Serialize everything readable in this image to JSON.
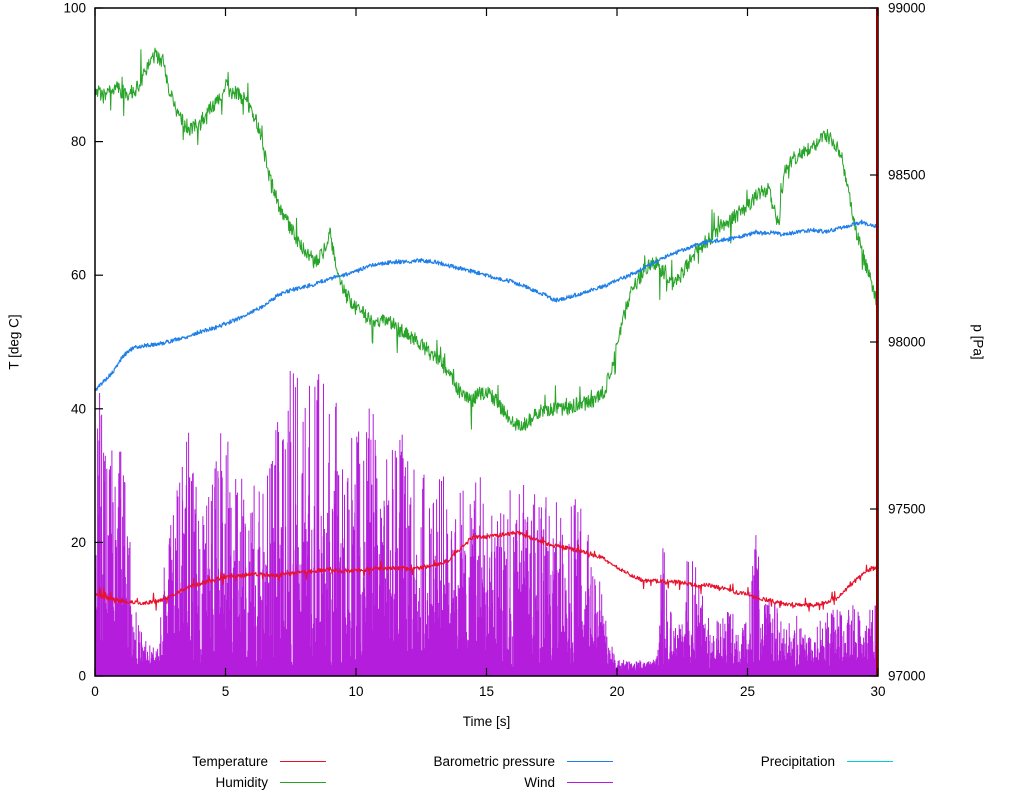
{
  "chart_data": {
    "type": "line",
    "title": "",
    "xlabel": "Time [s]",
    "ylabel_left": "T [deg C]",
    "ylabel_right": "p [Pa]",
    "x_range": [
      0,
      30
    ],
    "y_left_range": [
      0,
      100
    ],
    "y_right_range": [
      97000,
      99000
    ],
    "x_ticks": [
      0,
      5,
      10,
      15,
      20,
      25,
      30
    ],
    "y_ticks_left": [
      0,
      20,
      40,
      60,
      80,
      100
    ],
    "y_ticks_right": [
      97000,
      97500,
      98000,
      98500,
      99000
    ],
    "grid": false,
    "border_color": "#000000",
    "end_marker": {
      "x": 30,
      "color": "#8b0000"
    },
    "series": [
      {
        "id": "precipitation",
        "name": "Precipitation",
        "color": "#00d0d0",
        "axis": "left",
        "style": "line",
        "noise": 0,
        "seed": 11,
        "width": 1,
        "anchors": [
          [
            0,
            0
          ],
          [
            30,
            0
          ]
        ]
      },
      {
        "id": "wind",
        "name": "Wind",
        "color": "#b31ddb",
        "axis": "left",
        "style": "impulses",
        "seed": 7,
        "base": 2,
        "power": 2.2,
        "dt": 0.011,
        "anchors": [
          [
            0,
            32
          ],
          [
            0.2,
            48
          ],
          [
            0.5,
            30
          ],
          [
            0.8,
            40
          ],
          [
            1.2,
            30
          ],
          [
            1.5,
            12
          ],
          [
            2,
            6
          ],
          [
            2.4,
            5
          ],
          [
            2.7,
            20
          ],
          [
            3,
            28
          ],
          [
            3.5,
            38
          ],
          [
            4,
            30
          ],
          [
            4.5,
            30
          ],
          [
            5,
            44
          ],
          [
            5.5,
            32
          ],
          [
            6,
            30
          ],
          [
            6.5,
            34
          ],
          [
            7,
            40
          ],
          [
            7.5,
            48
          ],
          [
            8,
            44
          ],
          [
            8.5,
            46
          ],
          [
            9,
            48
          ],
          [
            9.3,
            40
          ],
          [
            9.7,
            36
          ],
          [
            10,
            38
          ],
          [
            10.5,
            42
          ],
          [
            11,
            36
          ],
          [
            11.5,
            38
          ],
          [
            12,
            36
          ],
          [
            12.5,
            34
          ],
          [
            13,
            30
          ],
          [
            13.5,
            32
          ],
          [
            14,
            30
          ],
          [
            14.5,
            34
          ],
          [
            15,
            28
          ],
          [
            15.5,
            26
          ],
          [
            16,
            34
          ],
          [
            16.5,
            30
          ],
          [
            17,
            28
          ],
          [
            17.5,
            30
          ],
          [
            18,
            26
          ],
          [
            18.5,
            28
          ],
          [
            19,
            24
          ],
          [
            19.3,
            20
          ],
          [
            19.6,
            10
          ],
          [
            20,
            2.5
          ],
          [
            20.5,
            2.5
          ],
          [
            21,
            2.5
          ],
          [
            21.5,
            3
          ],
          [
            21.8,
            26
          ],
          [
            22,
            12
          ],
          [
            22.3,
            8
          ],
          [
            22.6,
            16
          ],
          [
            22.8,
            20
          ],
          [
            23,
            18
          ],
          [
            23.3,
            13
          ],
          [
            23.6,
            9
          ],
          [
            24,
            9
          ],
          [
            24.3,
            12
          ],
          [
            24.6,
            8
          ],
          [
            25,
            13
          ],
          [
            25.3,
            24
          ],
          [
            25.6,
            16
          ],
          [
            26,
            15
          ],
          [
            26.3,
            10
          ],
          [
            26.6,
            9
          ],
          [
            27,
            10
          ],
          [
            27.4,
            8
          ],
          [
            27.7,
            9
          ],
          [
            28,
            10
          ],
          [
            28.4,
            11
          ],
          [
            28.8,
            12
          ],
          [
            29.2,
            11
          ],
          [
            29.6,
            10
          ],
          [
            30,
            13
          ]
        ]
      },
      {
        "id": "humidity",
        "name": "Humidity",
        "color": "#28a428",
        "axis": "left",
        "style": "line",
        "noise": 1.1,
        "spike": 4,
        "seed": 3,
        "width": 1,
        "anchors": [
          [
            0,
            88
          ],
          [
            0.3,
            87
          ],
          [
            0.8,
            88
          ],
          [
            1,
            87.5
          ],
          [
            1.3,
            87
          ],
          [
            1.6,
            88
          ],
          [
            2,
            91
          ],
          [
            2.3,
            93
          ],
          [
            2.6,
            92
          ],
          [
            2.9,
            87
          ],
          [
            3.2,
            84
          ],
          [
            3.6,
            82
          ],
          [
            4,
            82.5
          ],
          [
            4.3,
            84.5
          ],
          [
            4.7,
            86
          ],
          [
            5,
            88.5
          ],
          [
            5.2,
            87.5
          ],
          [
            5.5,
            87
          ],
          [
            5.8,
            86
          ],
          [
            6.1,
            84
          ],
          [
            6.4,
            80
          ],
          [
            6.6,
            76
          ],
          [
            6.9,
            72
          ],
          [
            7.2,
            69
          ],
          [
            7.5,
            67
          ],
          [
            7.8,
            65
          ],
          [
            8.1,
            63.5
          ],
          [
            8.4,
            62
          ],
          [
            8.7,
            63
          ],
          [
            9,
            66.5
          ],
          [
            9.1,
            64
          ],
          [
            9.3,
            60
          ],
          [
            9.6,
            57
          ],
          [
            10,
            55.5
          ],
          [
            10.4,
            54
          ],
          [
            10.8,
            52.5
          ],
          [
            11.2,
            53.5
          ],
          [
            11.6,
            52
          ],
          [
            12,
            51
          ],
          [
            12.4,
            50
          ],
          [
            12.8,
            48.5
          ],
          [
            13.2,
            47
          ],
          [
            13.6,
            45
          ],
          [
            14,
            42.5
          ],
          [
            14.4,
            41
          ],
          [
            14.8,
            42.5
          ],
          [
            15.2,
            42
          ],
          [
            15.6,
            40
          ],
          [
            16,
            38
          ],
          [
            16.3,
            37
          ],
          [
            16.7,
            38.5
          ],
          [
            17,
            39.5
          ],
          [
            17.5,
            40
          ],
          [
            18,
            40
          ],
          [
            18.5,
            40.5
          ],
          [
            19,
            41
          ],
          [
            19.5,
            42.5
          ],
          [
            19.8,
            46
          ],
          [
            20.2,
            53
          ],
          [
            20.6,
            58
          ],
          [
            21,
            60.5
          ],
          [
            21.4,
            62
          ],
          [
            21.8,
            60.5
          ],
          [
            22.2,
            58.5
          ],
          [
            22.6,
            61
          ],
          [
            23,
            63.5
          ],
          [
            23.4,
            65
          ],
          [
            23.8,
            66.5
          ],
          [
            24.2,
            68
          ],
          [
            24.6,
            69
          ],
          [
            25,
            70.5
          ],
          [
            25.4,
            72
          ],
          [
            25.8,
            73
          ],
          [
            26.2,
            67
          ],
          [
            26.4,
            76
          ],
          [
            26.8,
            77.5
          ],
          [
            27.2,
            78.5
          ],
          [
            27.6,
            79.5
          ],
          [
            28,
            81
          ],
          [
            28.3,
            80
          ],
          [
            28.6,
            78
          ],
          [
            28.9,
            72
          ],
          [
            29.2,
            66
          ],
          [
            29.5,
            62
          ],
          [
            29.8,
            58
          ],
          [
            30,
            55.5
          ]
        ]
      },
      {
        "id": "pressure",
        "name": "Barometric pressure",
        "color": "#1f7fe8",
        "axis": "right",
        "style": "line",
        "noise": 6,
        "seed": 5,
        "width": 1.2,
        "anchors": [
          [
            0,
            97855
          ],
          [
            0.3,
            97880
          ],
          [
            0.7,
            97910
          ],
          [
            1,
            97950
          ],
          [
            1.3,
            97975
          ],
          [
            1.6,
            97985
          ],
          [
            2,
            97990
          ],
          [
            2.5,
            97995
          ],
          [
            3,
            98005
          ],
          [
            3.5,
            98015
          ],
          [
            4,
            98030
          ],
          [
            4.5,
            98040
          ],
          [
            5,
            98055
          ],
          [
            5.5,
            98070
          ],
          [
            6,
            98090
          ],
          [
            6.5,
            98110
          ],
          [
            7,
            98140
          ],
          [
            7.5,
            98155
          ],
          [
            8,
            98165
          ],
          [
            8.5,
            98175
          ],
          [
            9,
            98190
          ],
          [
            9.5,
            98200
          ],
          [
            10,
            98210
          ],
          [
            10.5,
            98230
          ],
          [
            11,
            98235
          ],
          [
            11.5,
            98240
          ],
          [
            12,
            98240
          ],
          [
            12.5,
            98245
          ],
          [
            13,
            98240
          ],
          [
            13.5,
            98230
          ],
          [
            14,
            98220
          ],
          [
            14.5,
            98210
          ],
          [
            15,
            98200
          ],
          [
            15.5,
            98190
          ],
          [
            16,
            98180
          ],
          [
            16.5,
            98165
          ],
          [
            17,
            98150
          ],
          [
            17.3,
            98140
          ],
          [
            17.6,
            98125
          ],
          [
            18,
            98130
          ],
          [
            18.4,
            98140
          ],
          [
            18.8,
            98150
          ],
          [
            19.2,
            98160
          ],
          [
            19.6,
            98170
          ],
          [
            20,
            98185
          ],
          [
            20.5,
            98200
          ],
          [
            21,
            98220
          ],
          [
            21.5,
            98240
          ],
          [
            22,
            98260
          ],
          [
            22.5,
            98275
          ],
          [
            23,
            98290
          ],
          [
            23.5,
            98300
          ],
          [
            24,
            98305
          ],
          [
            24.5,
            98310
          ],
          [
            25,
            98320
          ],
          [
            25.3,
            98330
          ],
          [
            25.6,
            98325
          ],
          [
            26,
            98330
          ],
          [
            26.3,
            98320
          ],
          [
            26.6,
            98325
          ],
          [
            27,
            98330
          ],
          [
            27.5,
            98335
          ],
          [
            28,
            98330
          ],
          [
            28.5,
            98340
          ],
          [
            29,
            98350
          ],
          [
            29.4,
            98360
          ],
          [
            29.7,
            98350
          ],
          [
            30,
            98345
          ]
        ]
      },
      {
        "id": "temperature",
        "name": "Temperature",
        "color": "#e8112b",
        "axis": "left",
        "style": "line",
        "noise": 0.3,
        "spike": 1.2,
        "seed": 2,
        "width": 1.1,
        "anchors": [
          [
            0,
            12.2
          ],
          [
            0.5,
            11.6
          ],
          [
            1,
            11.2
          ],
          [
            1.5,
            11
          ],
          [
            2,
            11
          ],
          [
            2.5,
            11.3
          ],
          [
            3,
            12.2
          ],
          [
            3.5,
            13.2
          ],
          [
            4,
            13.8
          ],
          [
            4.5,
            14.3
          ],
          [
            5,
            14.8
          ],
          [
            5.5,
            15
          ],
          [
            6,
            15.3
          ],
          [
            6.5,
            15.2
          ],
          [
            7,
            15
          ],
          [
            7.5,
            15.3
          ],
          [
            8,
            15.6
          ],
          [
            8.5,
            15.8
          ],
          [
            9,
            16
          ],
          [
            9.5,
            15.7
          ],
          [
            10,
            15.8
          ],
          [
            10.5,
            16
          ],
          [
            11,
            16.1
          ],
          [
            11.5,
            16.2
          ],
          [
            12,
            16
          ],
          [
            12.5,
            16.2
          ],
          [
            13,
            16.5
          ],
          [
            13.5,
            17.2
          ],
          [
            14,
            19
          ],
          [
            14.3,
            20.3
          ],
          [
            14.6,
            20.8
          ],
          [
            15,
            20.8
          ],
          [
            15.4,
            21
          ],
          [
            15.8,
            21.3
          ],
          [
            16.2,
            21.5
          ],
          [
            16.6,
            20.8
          ],
          [
            17,
            20.2
          ],
          [
            17.5,
            19.6
          ],
          [
            18,
            19.2
          ],
          [
            18.5,
            18.8
          ],
          [
            19,
            18.3
          ],
          [
            19.5,
            17.6
          ],
          [
            20,
            16.2
          ],
          [
            20.5,
            15.2
          ],
          [
            21,
            14.3
          ],
          [
            21.5,
            14.2
          ],
          [
            22,
            14.2
          ],
          [
            22.5,
            14
          ],
          [
            23,
            13.6
          ],
          [
            23.5,
            13.6
          ],
          [
            24,
            13.2
          ],
          [
            24.5,
            12.6
          ],
          [
            25,
            12.2
          ],
          [
            25.5,
            11.6
          ],
          [
            26,
            11.2
          ],
          [
            26.5,
            10.8
          ],
          [
            27,
            10.6
          ],
          [
            27.5,
            10.6
          ],
          [
            28,
            11
          ],
          [
            28.5,
            12
          ],
          [
            29,
            13.8
          ],
          [
            29.3,
            15
          ],
          [
            29.6,
            15.8
          ],
          [
            30,
            16.3
          ]
        ]
      }
    ]
  },
  "legend": {
    "items": [
      {
        "id": "temperature",
        "label": "Temperature"
      },
      {
        "id": "humidity",
        "label": "Humidity"
      },
      {
        "id": "pressure",
        "label": "Barometric pressure"
      },
      {
        "id": "wind",
        "label": "Wind"
      },
      {
        "id": "precipitation",
        "label": "Precipitation"
      }
    ]
  }
}
